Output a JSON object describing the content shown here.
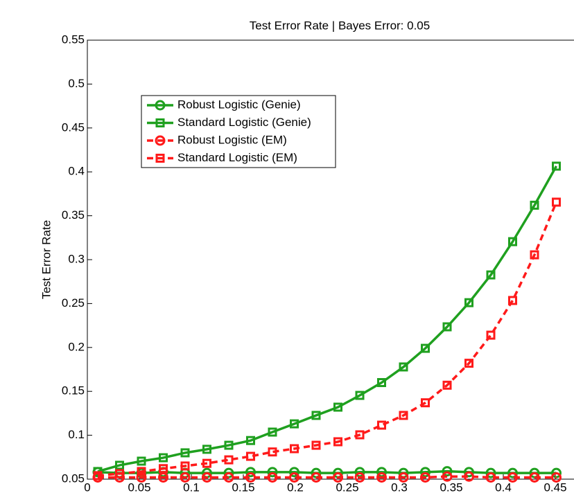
{
  "chart_data": {
    "type": "line",
    "title": "Test Error Rate | Bayes Error: 0.05",
    "y_label": "Test Error Rate",
    "x": [
      0.01,
      0.031,
      0.052,
      0.073,
      0.094,
      0.115,
      0.136,
      0.157,
      0.178,
      0.199,
      0.22,
      0.241,
      0.262,
      0.283,
      0.304,
      0.325,
      0.346,
      0.367,
      0.388,
      0.409,
      0.43,
      0.451
    ],
    "series": [
      {
        "name": "Robust Logistic (Genie)",
        "color": "#1fa01f",
        "marker": "circle",
        "dashed": false,
        "values": [
          0.058,
          0.057,
          0.057,
          0.058,
          0.057,
          0.057,
          0.057,
          0.058,
          0.058,
          0.058,
          0.057,
          0.057,
          0.058,
          0.058,
          0.057,
          0.058,
          0.059,
          0.058,
          0.057,
          0.057,
          0.057,
          0.057
        ]
      },
      {
        "name": "Standard Logistic (Genie)",
        "color": "#1fa01f",
        "marker": "square",
        "dashed": false,
        "values": [
          0.0587,
          0.0658,
          0.0705,
          0.0744,
          0.08,
          0.084,
          0.0886,
          0.094,
          0.1036,
          0.113,
          0.1226,
          0.132,
          0.1454,
          0.16,
          0.1778,
          0.199,
          0.2235,
          0.251,
          0.2826,
          0.3205,
          0.362,
          0.4065
        ]
      },
      {
        "name": "Robust Logistic (EM)",
        "color": "#ff1a1a",
        "marker": "circle",
        "dashed": true,
        "values": [
          0.052,
          0.052,
          0.052,
          0.052,
          0.052,
          0.052,
          0.052,
          0.052,
          0.052,
          0.052,
          0.052,
          0.052,
          0.052,
          0.052,
          0.052,
          0.052,
          0.053,
          0.053,
          0.052,
          0.052,
          0.052,
          0.052
        ]
      },
      {
        "name": "Standard Logistic (EM)",
        "color": "#ff1a1a",
        "marker": "square",
        "dashed": true,
        "values": [
          0.054,
          0.0563,
          0.0587,
          0.062,
          0.065,
          0.068,
          0.072,
          0.076,
          0.081,
          0.0847,
          0.0886,
          0.0926,
          0.1005,
          0.1115,
          0.1226,
          0.137,
          0.157,
          0.182,
          0.214,
          0.2535,
          0.3055,
          0.3655
        ]
      }
    ],
    "xlim": [
      0,
      0.468
    ],
    "ylim": [
      0.05,
      0.55
    ],
    "xticks": [
      0,
      0.05,
      0.1,
      0.15,
      0.2,
      0.25,
      0.3,
      0.35,
      0.4,
      0.45
    ],
    "yticks": [
      0.05,
      0.1,
      0.15,
      0.2,
      0.25,
      0.3,
      0.35,
      0.4,
      0.45,
      0.5,
      0.55
    ],
    "legend": "upper left"
  }
}
